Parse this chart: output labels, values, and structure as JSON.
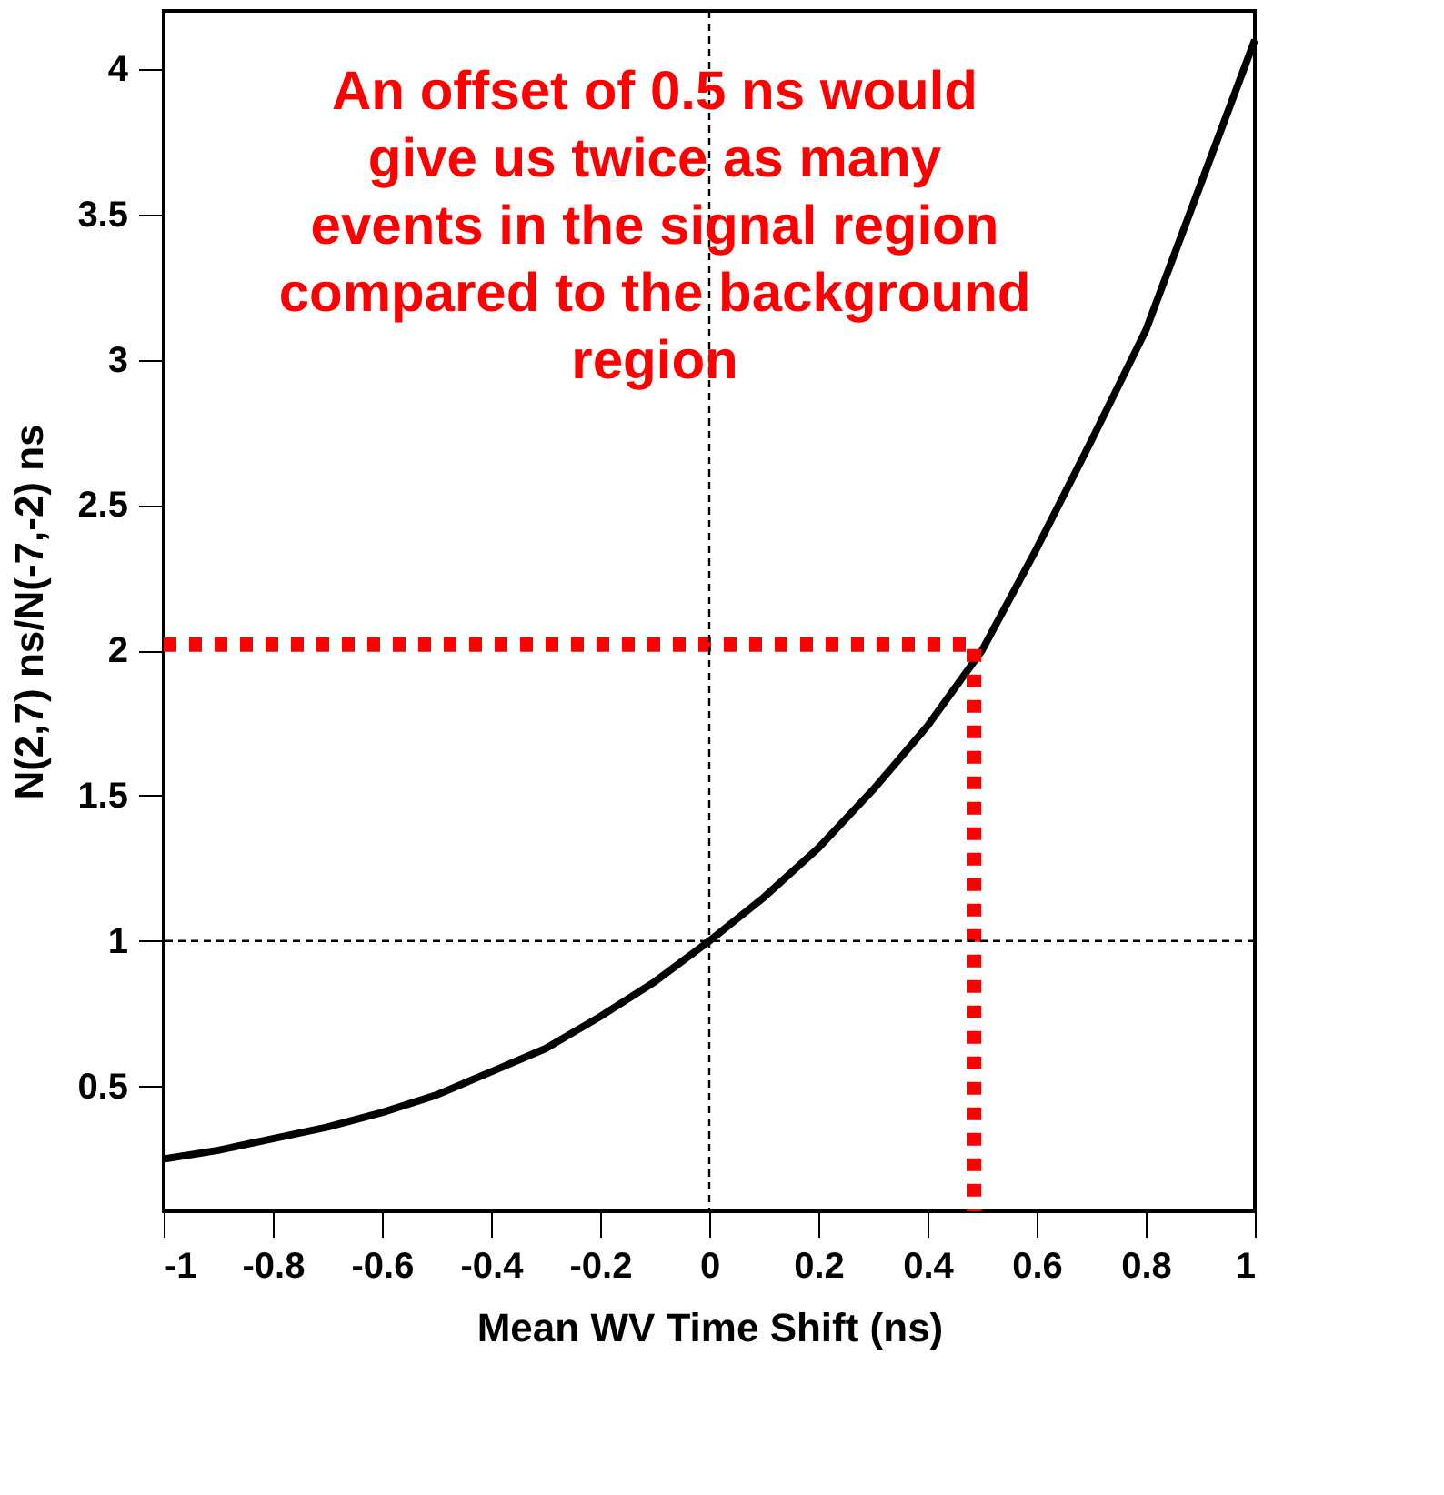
{
  "chart_data": {
    "type": "line",
    "xlabel": "Mean WV Time Shift (ns)",
    "ylabel": "N(2,7) ns/N(-7,-2) ns",
    "xlim": [
      -1,
      1
    ],
    "ylim": [
      0.07,
      4.2
    ],
    "xticks": [
      -1,
      -0.8,
      -0.6,
      -0.4,
      -0.2,
      0,
      0.2,
      0.4,
      0.6,
      0.8,
      1
    ],
    "yticks": [
      0.5,
      1,
      1.5,
      2,
      2.5,
      3,
      3.5,
      4
    ],
    "grid": false,
    "marker": "none",
    "series": [
      {
        "color": "#000000",
        "line_style": "solid",
        "x": [
          -1,
          -0.9,
          -0.8,
          -0.7,
          -0.6,
          -0.5,
          -0.4,
          -0.3,
          -0.2,
          -0.1,
          0,
          0.1,
          0.2,
          0.3,
          0.4,
          0.5,
          0.6,
          0.7,
          0.8,
          0.9,
          1.0
        ],
        "values": [
          0.25,
          0.28,
          0.32,
          0.36,
          0.41,
          0.47,
          0.55,
          0.63,
          0.74,
          0.86,
          1.0,
          1.15,
          1.32,
          1.52,
          1.74,
          2.0,
          2.35,
          2.72,
          3.1,
          3.6,
          4.1
        ]
      },
      {
        "color": "#ff0000",
        "line_style": "dotted",
        "x": [
          -1,
          0.485,
          0.485
        ],
        "values": [
          2.02,
          2.02,
          0.07
        ]
      }
    ],
    "ref_lines": [
      {
        "axis": "x",
        "value": 0,
        "color": "#000000",
        "line_style": "dashed"
      },
      {
        "axis": "y",
        "value": 1,
        "color": "#000000",
        "line_style": "dashed"
      }
    ],
    "annotations": [
      "An offset of 0.5 ns would\ngive us twice as many\nevents in the signal region\ncompared to the background\nregion"
    ]
  }
}
